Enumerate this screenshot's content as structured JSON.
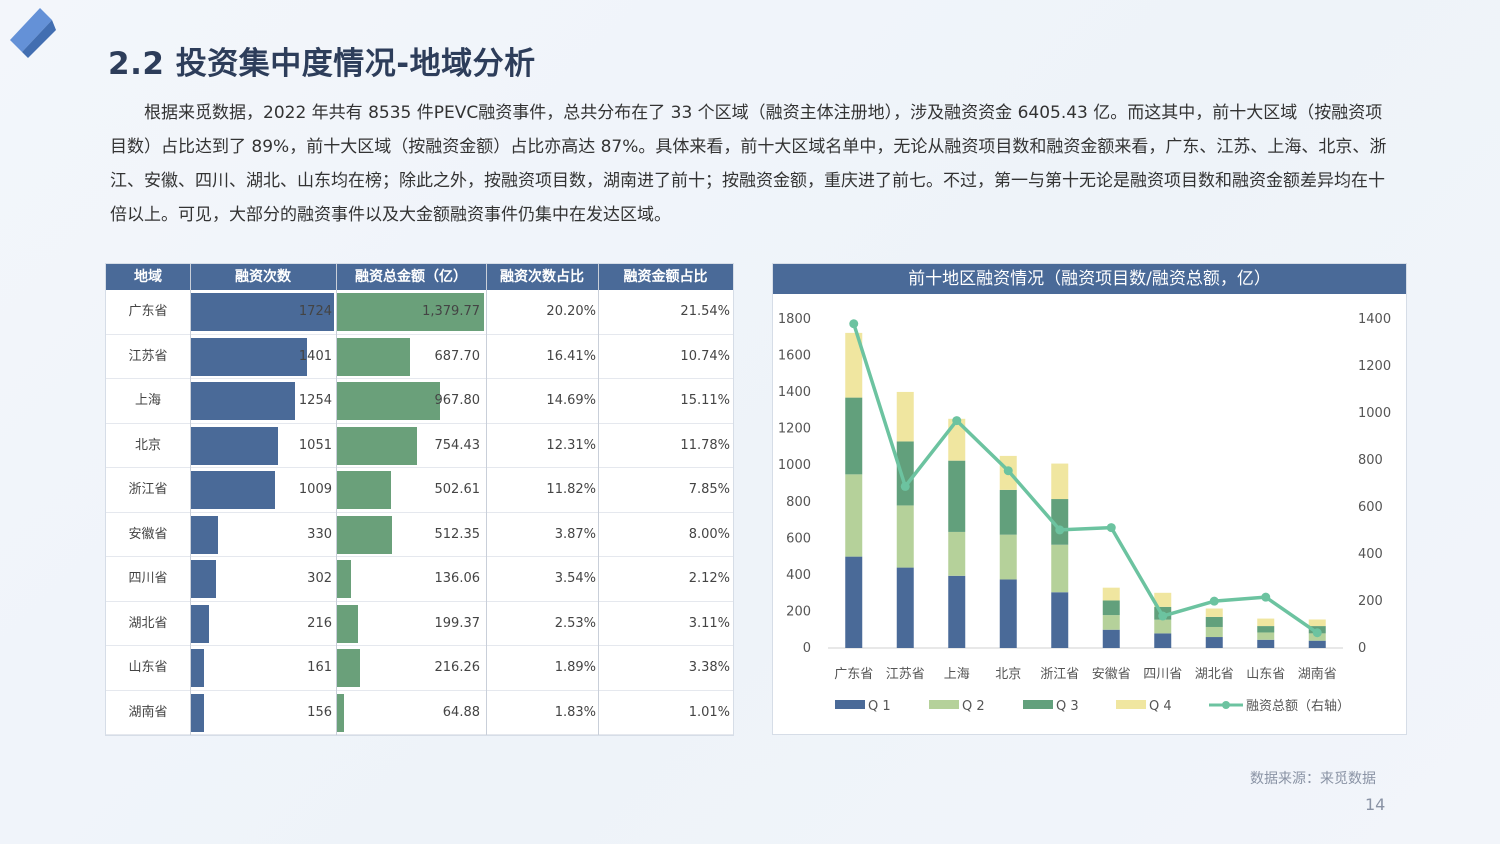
{
  "page": {
    "title": "2.2  投资集中度情况-地域分析",
    "intro": "根据来觅数据，2022 年共有 8535 件PEVC融资事件，总共分布在了 33 个区域（融资主体注册地），涉及融资资金 6405.43 亿。而这其中，前十大区域（按融资项目数）占比达到了 89%，前十大区域（按融资金额）占比亦高达 87%。具体来看，前十大区域名单中，无论从融资项目数和融资金额来看，广东、江苏、上海、北京、浙江、安徽、四川、湖北、山东均在榜；除此之外，按融资项目数，湖南进了前十；按融资金额，重庆进了前七。不过，第一与第十无论是融资项目数和融资金额差异均在十倍以上。可见，大部分的融资事件以及大金额融资事件仍集中在发达区域。",
    "source": "数据来源：来觅数据",
    "page_number": "14"
  },
  "table": {
    "headers": [
      "地域",
      "融资次数",
      "融资总金额（亿）",
      "融资次数占比",
      "融资金额占比"
    ],
    "rows": [
      {
        "region": "广东省",
        "count": 1724,
        "count_label": "1724",
        "amount": 1379.77,
        "amount_label": "1,379.77",
        "count_share": "20.20%",
        "amount_share": "21.54%"
      },
      {
        "region": "江苏省",
        "count": 1401,
        "count_label": "1401",
        "amount": 687.7,
        "amount_label": "687.70",
        "count_share": "16.41%",
        "amount_share": "10.74%"
      },
      {
        "region": "上海",
        "count": 1254,
        "count_label": "1254",
        "amount": 967.8,
        "amount_label": "967.80",
        "count_share": "14.69%",
        "amount_share": "15.11%"
      },
      {
        "region": "北京",
        "count": 1051,
        "count_label": "1051",
        "amount": 754.43,
        "amount_label": "754.43",
        "count_share": "12.31%",
        "amount_share": "11.78%"
      },
      {
        "region": "浙江省",
        "count": 1009,
        "count_label": "1009",
        "amount": 502.61,
        "amount_label": "502.61",
        "count_share": "11.82%",
        "amount_share": "7.85%"
      },
      {
        "region": "安徽省",
        "count": 330,
        "count_label": "330",
        "amount": 512.35,
        "amount_label": "512.35",
        "count_share": "3.87%",
        "amount_share": "8.00%"
      },
      {
        "region": "四川省",
        "count": 302,
        "count_label": "302",
        "amount": 136.06,
        "amount_label": "136.06",
        "count_share": "3.54%",
        "amount_share": "2.12%"
      },
      {
        "region": "湖北省",
        "count": 216,
        "count_label": "216",
        "amount": 199.37,
        "amount_label": "199.37",
        "count_share": "2.53%",
        "amount_share": "3.11%"
      },
      {
        "region": "山东省",
        "count": 161,
        "count_label": "161",
        "amount": 216.26,
        "amount_label": "216.26",
        "count_share": "1.89%",
        "amount_share": "3.38%"
      },
      {
        "region": "湖南省",
        "count": 156,
        "count_label": "156",
        "amount": 64.88,
        "amount_label": "64.88",
        "count_share": "1.83%",
        "amount_share": "1.01%"
      }
    ]
  },
  "colors": {
    "header": "#4a6a98",
    "q1": "#4a6a98",
    "q2": "#b5d19a",
    "q3": "#62a07c",
    "q4": "#f0e6a0",
    "line": "#6cc3a0"
  },
  "chart_data": {
    "type": "bar",
    "title": "前十地区融资情况（融资项目数/融资总额，亿）",
    "categories": [
      "广东省",
      "江苏省",
      "上海",
      "北京",
      "浙江省",
      "安徽省",
      "四川省",
      "湖北省",
      "山东省",
      "湖南省"
    ],
    "stacked": true,
    "series": [
      {
        "name": "Q 1",
        "values": [
          500,
          440,
          395,
          375,
          305,
          100,
          80,
          60,
          45,
          40
        ]
      },
      {
        "name": "Q 2",
        "values": [
          450,
          340,
          240,
          245,
          260,
          80,
          75,
          55,
          40,
          40
        ]
      },
      {
        "name": "Q 3",
        "values": [
          420,
          350,
          390,
          245,
          250,
          80,
          70,
          55,
          35,
          40
        ]
      },
      {
        "name": "Q 4",
        "values": [
          354,
          271,
          229,
          186,
          194,
          70,
          77,
          46,
          41,
          36
        ]
      }
    ],
    "line_series": {
      "name": "融资总额（右轴）",
      "axis": "right",
      "values": [
        1379.77,
        687.7,
        967.8,
        754.43,
        502.61,
        512.35,
        136.06,
        199.37,
        216.26,
        64.88
      ]
    },
    "ylim_left": [
      0,
      1800
    ],
    "yticks_left": [
      0,
      200,
      400,
      600,
      800,
      1000,
      1200,
      1400,
      1600,
      1800
    ],
    "ylim_right": [
      0,
      1400
    ],
    "yticks_right": [
      0,
      200,
      400,
      600,
      800,
      1000,
      1200,
      1400
    ],
    "legend": [
      "Q 1",
      "Q 2",
      "Q 3",
      "Q 4",
      "融资总额（右轴）"
    ],
    "legend_position": "bottom",
    "grid": false
  }
}
